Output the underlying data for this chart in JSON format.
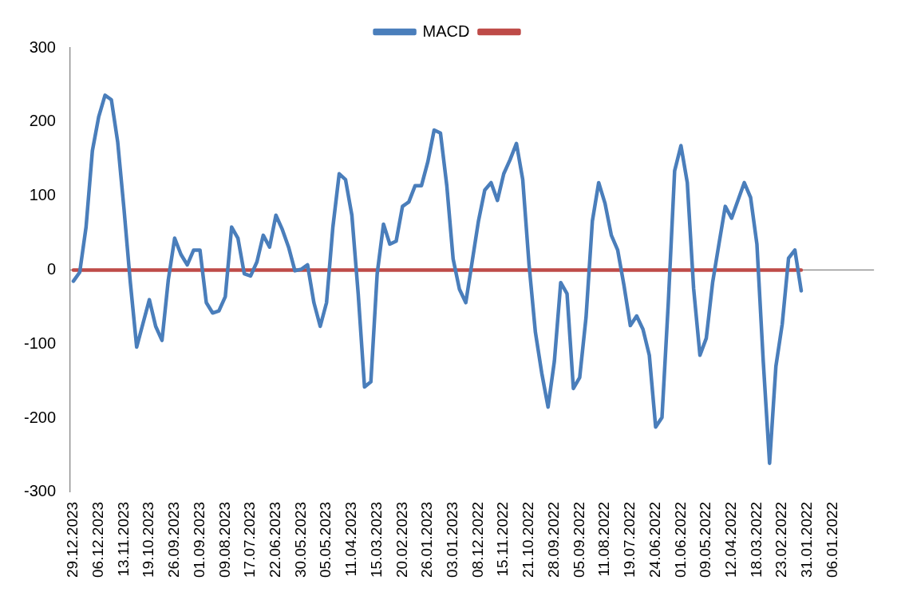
{
  "chart_data": {
    "type": "line",
    "legend": "top",
    "marker": "none",
    "line_style": "solid",
    "categories": [
      "29.12.2023",
      null,
      null,
      null,
      "06.12.2023",
      null,
      null,
      null,
      "13.11.2023",
      null,
      null,
      null,
      "19.10.2023",
      null,
      null,
      null,
      "26.09.2023",
      null,
      null,
      null,
      "01.09.2023",
      null,
      null,
      null,
      "09.08.2023",
      null,
      null,
      null,
      "17.07.2023",
      null,
      null,
      null,
      "22.06.2023",
      null,
      null,
      null,
      "30.05.2023",
      null,
      null,
      null,
      "05.05.2023",
      null,
      null,
      null,
      "11.04.2023",
      null,
      null,
      null,
      "15.03.2023",
      null,
      null,
      null,
      "20.02.2023",
      null,
      null,
      null,
      "26.01.2023",
      null,
      null,
      null,
      "03.01.2023",
      null,
      null,
      null,
      "08.12.2022",
      null,
      null,
      null,
      "15.11.2022",
      null,
      null,
      null,
      "21.10.2022",
      null,
      null,
      null,
      "28.09.2022",
      null,
      null,
      null,
      "05.09.2022",
      null,
      null,
      null,
      "11.08.2022",
      null,
      null,
      null,
      "19.07.2022",
      null,
      null,
      null,
      "24.06.2022",
      null,
      null,
      null,
      "01.06.2022",
      null,
      null,
      null,
      "09.05.2022",
      null,
      null,
      null,
      "12.04.2022",
      null,
      null,
      null,
      "18.03.2022",
      null,
      null,
      null,
      "23.02.2022",
      null,
      null,
      null,
      "31.01.2022",
      null,
      null,
      null,
      "06.01.2022",
      null,
      null,
      null,
      null,
      null,
      null
    ],
    "ylim": [
      -300,
      300
    ],
    "yticks": [
      -300,
      -200,
      -100,
      0,
      100,
      200,
      300
    ],
    "series": [
      {
        "name": "MACD",
        "color": "#4a7ebb",
        "values": [
          -15,
          -3,
          58,
          161,
          207,
          236,
          230,
          173,
          82,
          -17,
          -104,
          -72,
          -40,
          -76,
          -95,
          -13,
          43,
          21,
          7,
          27,
          27,
          -44,
          -58,
          -55,
          -36,
          58,
          43,
          -5,
          -8,
          11,
          47,
          31,
          74,
          55,
          31,
          -1,
          1,
          7,
          -44,
          -76,
          -44,
          58,
          130,
          122,
          74,
          -32,
          -158,
          -151,
          -5,
          62,
          35,
          39,
          86,
          92,
          114,
          114,
          146,
          189,
          185,
          114,
          15,
          -26,
          -44,
          11,
          66,
          108,
          118,
          94,
          130,
          149,
          171,
          122,
          7,
          -84,
          -139,
          -185,
          -123,
          -17,
          -32,
          -160,
          -145,
          -64,
          66,
          118,
          90,
          47,
          27,
          -21,
          -75,
          -62,
          -80,
          -115,
          -212,
          -199,
          -44,
          134,
          168,
          118,
          -25,
          -115,
          -92,
          -17,
          35,
          86,
          70,
          94,
          118,
          98,
          35,
          -123,
          -261,
          -130,
          -73,
          16,
          27,
          -28,
          null,
          null,
          null,
          null,
          null,
          null,
          null,
          null,
          null,
          null,
          null
        ]
      },
      {
        "color": "#be4b48",
        "values": [
          0,
          0,
          0,
          0,
          0,
          0,
          0,
          0,
          0,
          0,
          0,
          0,
          0,
          0,
          0,
          0,
          0,
          0,
          0,
          0,
          0,
          0,
          0,
          0,
          0,
          0,
          0,
          0,
          0,
          0,
          0,
          0,
          0,
          0,
          0,
          0,
          0,
          0,
          0,
          0,
          0,
          0,
          0,
          0,
          0,
          0,
          0,
          0,
          0,
          0,
          0,
          0,
          0,
          0,
          0,
          0,
          0,
          0,
          0,
          0,
          0,
          0,
          0,
          0,
          0,
          0,
          0,
          0,
          0,
          0,
          0,
          0,
          0,
          0,
          0,
          0,
          0,
          0,
          0,
          0,
          0,
          0,
          0,
          0,
          0,
          0,
          0,
          0,
          0,
          0,
          0,
          0,
          0,
          0,
          0,
          0,
          0,
          0,
          0,
          0,
          0,
          0,
          0,
          0,
          0,
          0,
          0,
          0,
          0,
          0,
          0,
          0,
          0,
          0,
          0,
          0,
          null,
          null,
          null,
          null,
          null,
          null,
          null,
          null,
          null,
          null,
          null
        ]
      }
    ]
  }
}
